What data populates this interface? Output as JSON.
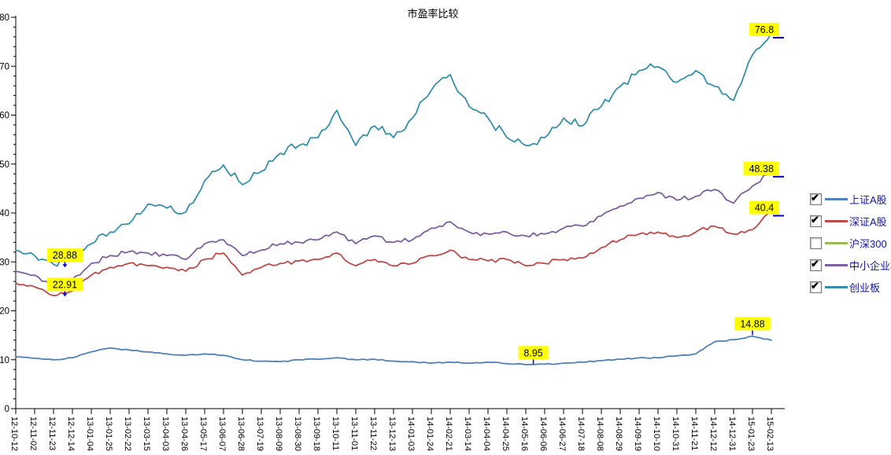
{
  "chart_data": {
    "type": "line",
    "title": "市盈率比较",
    "xlabel": "",
    "ylabel": "",
    "ylim": [
      0,
      80
    ],
    "y_major_step": 10,
    "y_minor_step": 2,
    "grid": false,
    "legend_position": "right",
    "axis_color": "#000000",
    "background": "#ffffff",
    "x_labels": [
      "12-10-12",
      "12-11-02",
      "12-11-23",
      "12-12-14",
      "13-01-04",
      "13-01-25",
      "13-02-22",
      "13-03-15",
      "13-04-03",
      "13-04-26",
      "13-05-17",
      "13-06-07",
      "13-06-28",
      "13-07-19",
      "13-08-09",
      "13-08-30",
      "13-09-18",
      "13-10-11",
      "13-11-01",
      "13-11-22",
      "13-12-13",
      "14-01-03",
      "14-01-24",
      "14-02-21",
      "14-03-14",
      "14-04-04",
      "14-04-25",
      "14-05-16",
      "14-06-06",
      "14-06-27",
      "14-07-18",
      "14-08-08",
      "14-08-29",
      "14-09-19",
      "14-10-10",
      "14-10-31",
      "14-11-21",
      "14-12-12",
      "14-12-31",
      "15-01-23",
      "15-02-13"
    ],
    "series": [
      {
        "key": "sse-a",
        "name": "上证A股",
        "color": "#4F81BD",
        "checked": true,
        "visible": true,
        "noise": 0.13,
        "values": [
          10.6,
          10.3,
          10.0,
          10.4,
          11.6,
          12.4,
          12.0,
          11.6,
          11.2,
          10.9,
          11.2,
          10.9,
          10.0,
          9.7,
          9.6,
          10.0,
          10.1,
          10.4,
          10.0,
          10.1,
          9.7,
          9.6,
          9.3,
          9.5,
          9.3,
          9.5,
          9.2,
          9.0,
          9.1,
          9.3,
          9.5,
          9.8,
          10.1,
          10.4,
          10.4,
          10.8,
          11.2,
          13.7,
          14.1,
          14.8,
          14.0
        ]
      },
      {
        "key": "szse-a",
        "name": "深证A股",
        "color": "#BE4B48",
        "checked": true,
        "visible": true,
        "noise": 0.5,
        "values": [
          25.7,
          24.9,
          23.1,
          24.1,
          27.3,
          28.9,
          29.7,
          29.2,
          28.9,
          28.1,
          30.5,
          31.8,
          27.3,
          28.9,
          29.7,
          30.2,
          30.5,
          31.8,
          29.2,
          30.5,
          29.2,
          29.7,
          31.3,
          32.4,
          30.5,
          30.2,
          30.5,
          29.2,
          29.7,
          30.5,
          30.8,
          32.9,
          34.5,
          35.7,
          36.1,
          35.0,
          36.1,
          37.3,
          35.7,
          36.6,
          40.4
        ]
      },
      {
        "key": "csi300",
        "name": "沪深300",
        "color": "#98B954",
        "checked": false,
        "visible": false,
        "noise": 0,
        "values": null
      },
      {
        "key": "sme",
        "name": "中小企业板",
        "color": "#7D60A0",
        "checked": true,
        "visible": true,
        "noise": 0.55,
        "values": [
          28.1,
          27.3,
          25.2,
          26.5,
          29.7,
          31.3,
          32.1,
          31.8,
          31.3,
          30.5,
          33.7,
          34.5,
          31.3,
          32.4,
          33.7,
          34.0,
          34.5,
          36.1,
          33.7,
          35.3,
          34.0,
          34.5,
          36.9,
          38.2,
          36.1,
          35.7,
          36.1,
          35.3,
          35.7,
          36.9,
          37.3,
          39.4,
          41.4,
          43.0,
          44.2,
          42.6,
          43.4,
          44.8,
          42.0,
          45.5,
          48.38
        ]
      },
      {
        "key": "chinext",
        "name": "创业板",
        "color": "#3690AC",
        "checked": true,
        "visible": true,
        "noise": 1.0,
        "values": [
          32.4,
          31.3,
          29.5,
          30.5,
          33.7,
          36.1,
          37.8,
          41.8,
          41.0,
          40.2,
          46.6,
          49.8,
          45.8,
          48.5,
          52.2,
          53.8,
          55.4,
          61.0,
          53.8,
          57.8,
          55.4,
          59.4,
          65.1,
          68.3,
          61.8,
          59.4,
          55.4,
          53.8,
          55.4,
          59.4,
          57.8,
          61.8,
          65.9,
          69.1,
          69.9,
          66.7,
          69.1,
          65.9,
          63.0,
          72.3,
          76.8
        ]
      }
    ],
    "annotations": [
      {
        "text": "28.88",
        "series": "chinext",
        "x_index": 2.6,
        "value": 28.88,
        "style": "arrow-down"
      },
      {
        "text": "22.91",
        "series": "szse-a",
        "x_index": 2.6,
        "value": 22.91,
        "style": "arrow-down"
      },
      {
        "text": "8.95",
        "series": "sse-a",
        "x_index": 27.4,
        "value": 8.95,
        "style": "tick-down"
      },
      {
        "text": "14.88",
        "series": "sse-a",
        "x_index": 39,
        "value": 14.88,
        "style": "tick-down"
      },
      {
        "text": "76.8",
        "series": "chinext",
        "x_index": 40,
        "value": 76.8,
        "style": "end-dash"
      },
      {
        "text": "48.38",
        "series": "sme",
        "x_index": 40,
        "value": 48.38,
        "style": "end-dash"
      },
      {
        "text": "40.4",
        "series": "szse-a",
        "x_index": 40,
        "value": 40.4,
        "style": "end-dash"
      }
    ],
    "annotation_colors": {
      "label_bg": "#FFFF00",
      "label_text": "#000000",
      "pointer": "#0000C8"
    }
  }
}
